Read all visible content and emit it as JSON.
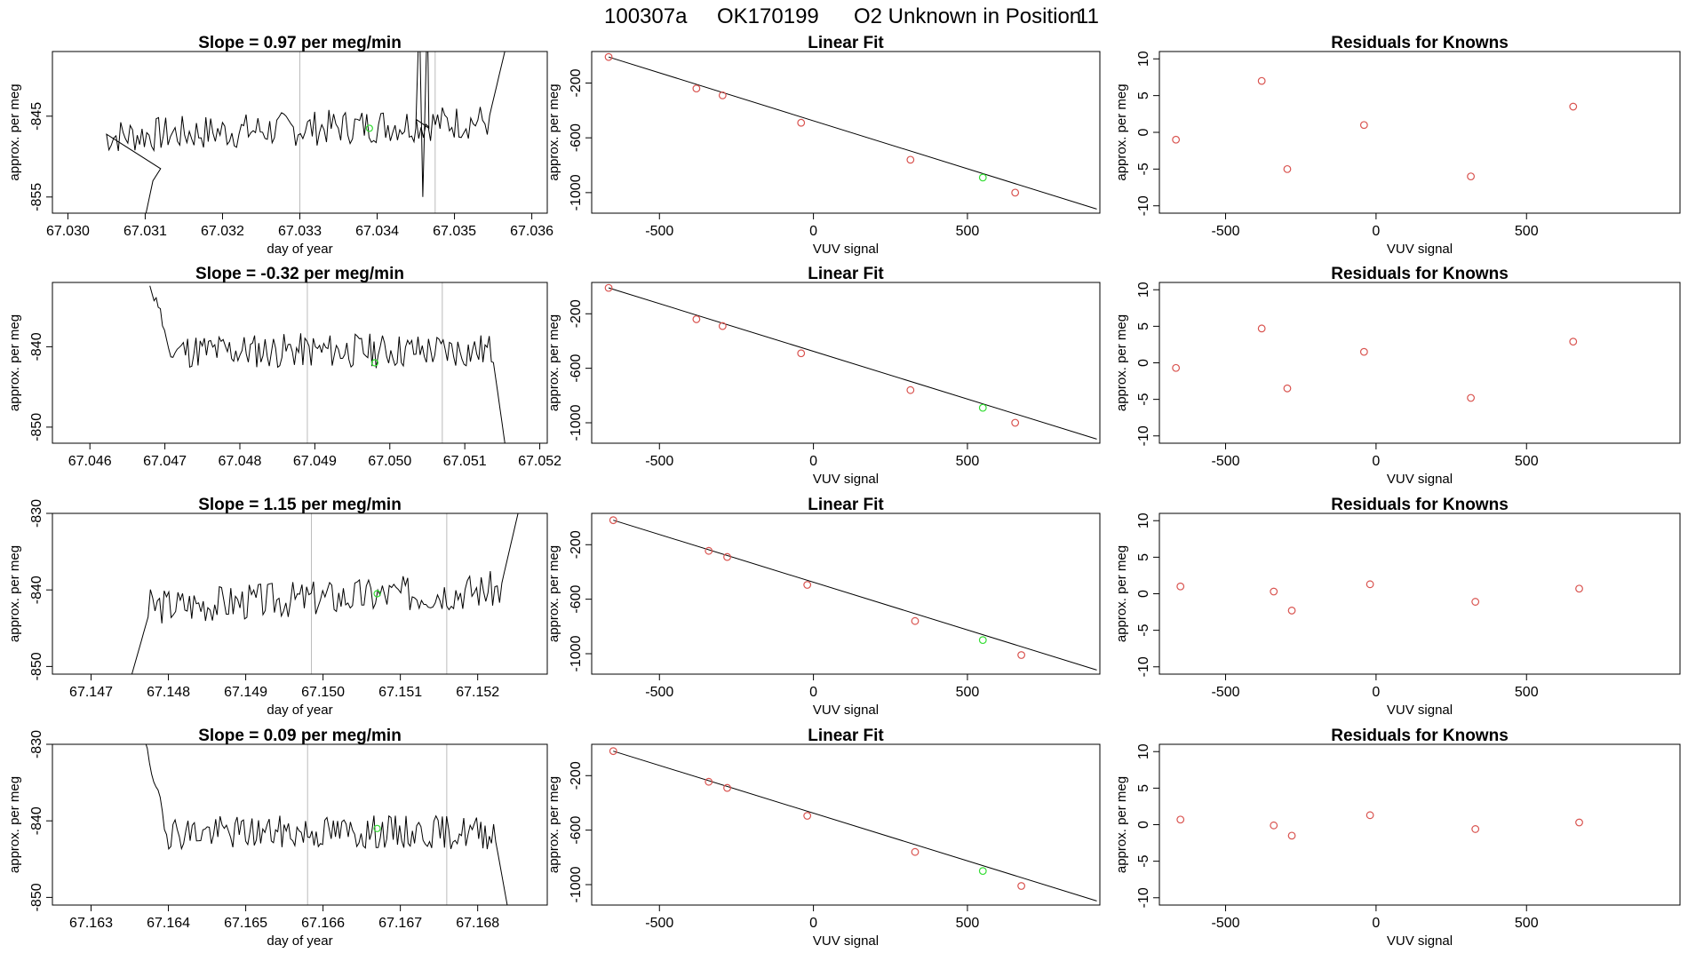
{
  "figure": {
    "title_parts": [
      "100307a",
      "OK170199",
      "O2 Unknown in Position",
      "11"
    ]
  },
  "colors": {
    "known": "#d9534f",
    "unknown": "#33dd33",
    "line": "#000000",
    "vline": "#bbbbbb"
  },
  "chart_data": [
    {
      "type": "line",
      "row": 0,
      "col": 0,
      "title": "Slope =  0.97  per meg/min",
      "xlabel": "day of year",
      "ylabel": "approx. per meg",
      "xlim": [
        67.0298,
        67.0362
      ],
      "ylim": [
        -857,
        -837
      ],
      "xticks": [
        "67.030",
        "67.031",
        "67.032",
        "67.033",
        "67.034",
        "67.035",
        "67.036"
      ],
      "yticks": [
        -855,
        -845
      ],
      "vlines": [
        67.033,
        67.03475
      ],
      "x_start": 67.0305,
      "x_end": 67.0357,
      "y_base": -846.5,
      "amplitude": 2.2,
      "trend": 2.0,
      "seed": 7,
      "segments": [
        {
          "x": 67.0305,
          "y": -857.5
        },
        {
          "x": 67.031,
          "y": -857.5
        },
        {
          "x": 67.0311,
          "y": -853
        },
        {
          "x": 67.0312,
          "y": -851.5
        }
      ],
      "spike_up_at": [
        67.0345,
        67.03465
      ],
      "rise_end_y": -836,
      "point": {
        "x": 67.0339,
        "y": -846.5
      }
    },
    {
      "type": "line",
      "row": 1,
      "col": 0,
      "title": "Slope =  -0.32  per meg/min",
      "xlabel": "",
      "ylabel": "approx. per meg",
      "xlim": [
        67.0455,
        67.0521
      ],
      "ylim": [
        -852,
        -832
      ],
      "xticks": [
        "67.046",
        "67.047",
        "67.048",
        "67.049",
        "67.050",
        "67.051",
        "67.052"
      ],
      "yticks": [
        -850,
        -840
      ],
      "vlines": [
        67.0489,
        67.0507
      ],
      "x_start": 67.0468,
      "x_end": 67.05155,
      "y_base": -840.5,
      "amplitude": 2.2,
      "trend": 0,
      "seed": 11,
      "start_high_y": -832,
      "drop_end_y": -853,
      "point": {
        "x": 67.0498,
        "y": -842
      }
    },
    {
      "type": "line",
      "row": 2,
      "col": 0,
      "title": "Slope =  1.15  per meg/min",
      "xlabel": "day of year",
      "ylabel": "approx. per meg",
      "xlim": [
        67.1465,
        67.1529
      ],
      "ylim": [
        -851,
        -830
      ],
      "xticks": [
        "67.147",
        "67.148",
        "67.149",
        "67.150",
        "67.151",
        "67.152"
      ],
      "yticks": [
        -850,
        -840,
        -830
      ],
      "vlines": [
        67.14985,
        67.1516
      ],
      "x_start": 67.1475,
      "x_end": 67.15255,
      "y_base": -841,
      "amplitude": 2.4,
      "trend": 2.5,
      "seed": 3,
      "start_low_y": -852,
      "rise_end_y": -830,
      "point": {
        "x": 67.1507,
        "y": -840.5
      }
    },
    {
      "type": "line",
      "row": 3,
      "col": 0,
      "title": "Slope =  0.09  per meg/min",
      "xlabel": "day of year",
      "ylabel": "approx. per meg",
      "xlim": [
        67.1625,
        67.1689
      ],
      "ylim": [
        -851,
        -830
      ],
      "xticks": [
        "67.163",
        "67.164",
        "67.165",
        "67.166",
        "67.167",
        "67.168"
      ],
      "yticks": [
        -850,
        -840,
        -830
      ],
      "vlines": [
        67.1658,
        67.1676
      ],
      "x_start": 67.1637,
      "x_end": 67.1684,
      "y_base": -841.5,
      "amplitude": 2.2,
      "trend": 0,
      "seed": 19,
      "start_high_y": -830,
      "drop_end_y": -852,
      "point": {
        "x": 67.1667,
        "y": -841
      }
    },
    {
      "type": "scatter",
      "row": 0,
      "col": 1,
      "title": "Linear Fit",
      "xlabel": "VUV signal",
      "ylabel": "approx. per meg",
      "xlim": [
        -720,
        930
      ],
      "ylim": [
        -1150,
        30
      ],
      "xticks": [
        -500,
        0,
        500
      ],
      "yticks": [
        -200,
        -600,
        -1000
      ],
      "fit": {
        "x": [
          -665,
          920
        ],
        "y": [
          -10,
          -1120
        ]
      },
      "knowns": [
        [
          -665,
          -10
        ],
        [
          -380,
          -240
        ],
        [
          -295,
          -290
        ],
        [
          -40,
          -490
        ],
        [
          315,
          -760
        ],
        [
          655,
          -1000
        ]
      ],
      "unknown": [
        550,
        -890
      ]
    },
    {
      "type": "scatter",
      "row": 1,
      "col": 1,
      "title": "Linear Fit",
      "xlabel": "VUV signal",
      "ylabel": "approx. per meg",
      "xlim": [
        -720,
        930
      ],
      "ylim": [
        -1150,
        30
      ],
      "xticks": [
        -500,
        0,
        500
      ],
      "yticks": [
        -200,
        -600,
        -1000
      ],
      "fit": {
        "x": [
          -665,
          920
        ],
        "y": [
          -10,
          -1120
        ]
      },
      "knowns": [
        [
          -665,
          -10
        ],
        [
          -380,
          -240
        ],
        [
          -295,
          -290
        ],
        [
          -40,
          -490
        ],
        [
          315,
          -760
        ],
        [
          655,
          -1000
        ]
      ],
      "unknown": [
        550,
        -890
      ]
    },
    {
      "type": "scatter",
      "row": 2,
      "col": 1,
      "title": "Linear Fit",
      "xlabel": "VUV signal",
      "ylabel": "approx. per meg",
      "xlim": [
        -720,
        930
      ],
      "ylim": [
        -1150,
        30
      ],
      "xticks": [
        -500,
        0,
        500
      ],
      "yticks": [
        -200,
        -600,
        -1000
      ],
      "fit": {
        "x": [
          -650,
          920
        ],
        "y": [
          -20,
          -1120
        ]
      },
      "knowns": [
        [
          -650,
          -20
        ],
        [
          -340,
          -245
        ],
        [
          -280,
          -290
        ],
        [
          -20,
          -495
        ],
        [
          330,
          -760
        ],
        [
          675,
          -1010
        ]
      ],
      "unknown": [
        550,
        -900
      ]
    },
    {
      "type": "scatter",
      "row": 3,
      "col": 1,
      "title": "Linear Fit",
      "xlabel": "VUV signal",
      "ylabel": "approx. per meg",
      "xlim": [
        -720,
        930
      ],
      "ylim": [
        -1150,
        30
      ],
      "xticks": [
        -500,
        0,
        500
      ],
      "yticks": [
        -200,
        -600,
        -1000
      ],
      "fit": {
        "x": [
          -650,
          920
        ],
        "y": [
          -20,
          -1120
        ]
      },
      "knowns": [
        [
          -650,
          -20
        ],
        [
          -340,
          -245
        ],
        [
          -280,
          -290
        ],
        [
          -20,
          -495
        ],
        [
          330,
          -760
        ],
        [
          675,
          -1010
        ]
      ],
      "unknown": [
        550,
        -900
      ]
    },
    {
      "type": "scatter",
      "row": 0,
      "col": 2,
      "title": "Residuals for Knowns",
      "xlabel": "VUV signal",
      "ylabel": "approx. per meg",
      "xlim": [
        -720,
        1010
      ],
      "ylim": [
        -11,
        11
      ],
      "xticks": [
        -500,
        0,
        500
      ],
      "yticks": [
        -10,
        -5,
        0,
        5,
        10
      ],
      "knowns": [
        [
          -665,
          -1
        ],
        [
          -380,
          7
        ],
        [
          -295,
          -5
        ],
        [
          -40,
          1
        ],
        [
          315,
          -6
        ],
        [
          655,
          3.5
        ]
      ]
    },
    {
      "type": "scatter",
      "row": 1,
      "col": 2,
      "title": "Residuals for Knowns",
      "xlabel": "VUV signal",
      "ylabel": "approx. per meg",
      "xlim": [
        -720,
        1010
      ],
      "ylim": [
        -11,
        11
      ],
      "xticks": [
        -500,
        0,
        500
      ],
      "yticks": [
        -10,
        -5,
        0,
        5,
        10
      ],
      "knowns": [
        [
          -665,
          -0.7
        ],
        [
          -380,
          4.7
        ],
        [
          -295,
          -3.5
        ],
        [
          -40,
          1.5
        ],
        [
          315,
          -4.8
        ],
        [
          655,
          2.9
        ]
      ]
    },
    {
      "type": "scatter",
      "row": 2,
      "col": 2,
      "title": "Residuals for Knowns",
      "xlabel": "VUV signal",
      "ylabel": "approx. per meg",
      "xlim": [
        -720,
        1010
      ],
      "ylim": [
        -11,
        11
      ],
      "xticks": [
        -500,
        0,
        500
      ],
      "yticks": [
        -10,
        -5,
        0,
        5,
        10
      ],
      "knowns": [
        [
          -650,
          1
        ],
        [
          -340,
          0.3
        ],
        [
          -280,
          -2.3
        ],
        [
          -20,
          1.3
        ],
        [
          330,
          -1.1
        ],
        [
          675,
          0.7
        ]
      ]
    },
    {
      "type": "scatter",
      "row": 3,
      "col": 2,
      "title": "Residuals for Knowns",
      "xlabel": "VUV signal",
      "ylabel": "approx. per meg",
      "xlim": [
        -720,
        1010
      ],
      "ylim": [
        -11,
        11
      ],
      "xticks": [
        -500,
        0,
        500
      ],
      "yticks": [
        -10,
        -5,
        0,
        5,
        10
      ],
      "knowns": [
        [
          -650,
          0.7
        ],
        [
          -340,
          -0.1
        ],
        [
          -280,
          -1.5
        ],
        [
          -20,
          1.3
        ],
        [
          330,
          -0.6
        ],
        [
          675,
          0.3
        ]
      ]
    }
  ]
}
